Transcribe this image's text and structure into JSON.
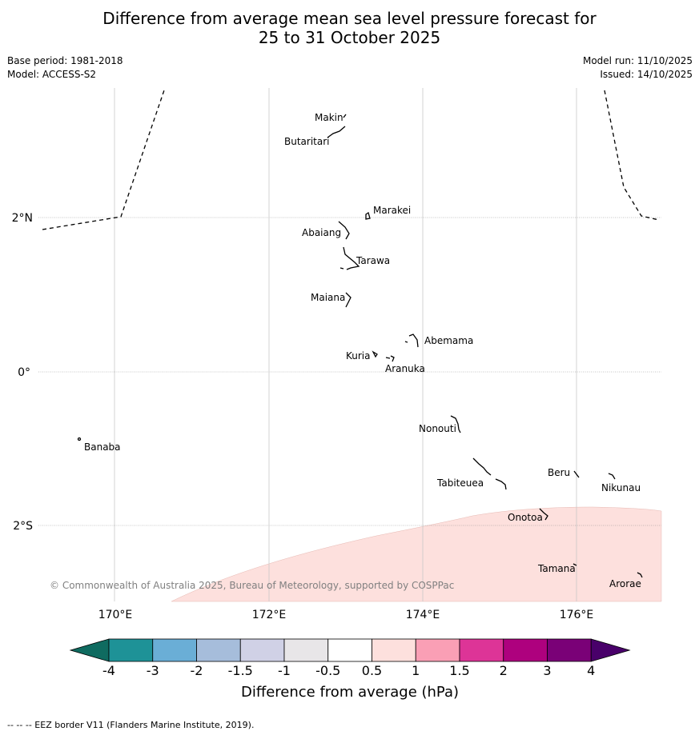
{
  "title_line1": "Difference from average mean sea level pressure forecast for",
  "title_line2": "25 to 31 October 2025",
  "base_period": "Base period: 1981-2018",
  "model": "Model: ACCESS-S2",
  "model_run": "Model run: 11/10/2025",
  "issued": "Issued: 14/10/2025",
  "axes": {
    "lon_ticks": [
      "170°E",
      "172°E",
      "174°E",
      "176°E"
    ],
    "lat_ticks": [
      "2°N",
      "0°",
      "2°S"
    ]
  },
  "islands": [
    {
      "name": "Makin",
      "lon": 172.95,
      "lat": 3.35
    },
    {
      "name": "Butaritari",
      "lon": 172.85,
      "lat": 3.1
    },
    {
      "name": "Marakei",
      "lon": 173.3,
      "lat": 2.0
    },
    {
      "name": "Abaiang",
      "lon": 173.0,
      "lat": 1.85
    },
    {
      "name": "Tarawa",
      "lon": 173.05,
      "lat": 1.4
    },
    {
      "name": "Maiana",
      "lon": 173.0,
      "lat": 0.95
    },
    {
      "name": "Abemama",
      "lon": 173.85,
      "lat": 0.4
    },
    {
      "name": "Kuria",
      "lon": 173.4,
      "lat": 0.23
    },
    {
      "name": "Aranuka",
      "lon": 173.62,
      "lat": 0.17
    },
    {
      "name": "Nonouti",
      "lon": 174.4,
      "lat": -0.65
    },
    {
      "name": "Banaba",
      "lon": 169.53,
      "lat": -0.87
    },
    {
      "name": "Tabiteuea",
      "lon": 174.8,
      "lat": -1.35
    },
    {
      "name": "Beru",
      "lon": 175.98,
      "lat": -1.33
    },
    {
      "name": "Nikunau",
      "lon": 176.45,
      "lat": -1.38
    },
    {
      "name": "Onotoa",
      "lon": 175.55,
      "lat": -1.8
    },
    {
      "name": "Tamana",
      "lon": 175.97,
      "lat": -2.5
    },
    {
      "name": "Arorae",
      "lon": 176.82,
      "lat": -2.65
    }
  ],
  "copyright": "© Commonwealth of Australia 2025, Bureau of Meteorology, supported by COSPPac",
  "colorbar": {
    "labels": [
      "-4",
      "-3",
      "-2",
      "-1.5",
      "-1",
      "-0.5",
      "0.5",
      "1",
      "1.5",
      "2",
      "3",
      "4"
    ],
    "colors": [
      "#0f6b60",
      "#1e9297",
      "#6aaed6",
      "#a6bddb",
      "#d0d1e6",
      "#e8e6e8",
      "#ffffff",
      "#fde0dd",
      "#fa9fb5",
      "#dd3497",
      "#ae017e",
      "#7a0177",
      "#49006a"
    ],
    "title": "Difference from average (hPa)"
  },
  "field": {
    "region": "-0.5 to 0.5 elsewhere; 0.5 to 1 south of about 1.5°S",
    "fill_color": "#fde0dd"
  },
  "footer": "--  --  -- EEZ border V11 (Flanders Marine Institute, 2019)."
}
